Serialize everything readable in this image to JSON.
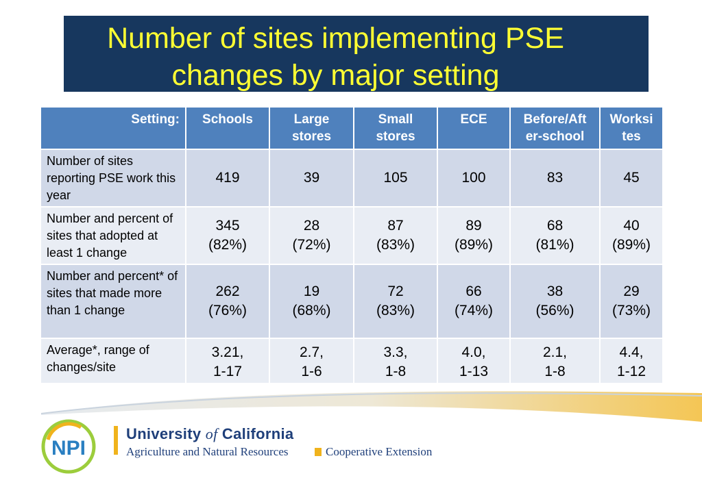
{
  "title": {
    "line1": "Number of sites implementing PSE",
    "line2": "changes by major setting"
  },
  "table": {
    "setting_label": "Setting:",
    "columns": [
      {
        "line1": "Schools",
        "line2": ""
      },
      {
        "line1": "Large",
        "line2": "stores"
      },
      {
        "line1": "Small",
        "line2": "stores"
      },
      {
        "line1": "ECE",
        "line2": ""
      },
      {
        "line1": "Before/Aft",
        "line2": "er-school"
      },
      {
        "line1": "Worksi",
        "line2": "tes"
      }
    ],
    "rows": [
      {
        "label": "Number of sites reporting PSE work this year",
        "cells": [
          {
            "a": "419",
            "b": ""
          },
          {
            "a": "39",
            "b": ""
          },
          {
            "a": "105",
            "b": ""
          },
          {
            "a": "100",
            "b": ""
          },
          {
            "a": "83",
            "b": ""
          },
          {
            "a": "45",
            "b": ""
          }
        ]
      },
      {
        "label": "Number and percent of sites that adopted at least 1 change",
        "cells": [
          {
            "a": "345",
            "b": "(82%)"
          },
          {
            "a": "28",
            "b": "(72%)"
          },
          {
            "a": "87",
            "b": "(83%)"
          },
          {
            "a": "89",
            "b": "(89%)"
          },
          {
            "a": "68",
            "b": "(81%)"
          },
          {
            "a": "40",
            "b": "(89%)"
          }
        ]
      },
      {
        "label": "Number and percent* of sites that made more than 1 change",
        "cells": [
          {
            "a": "262",
            "b": "(76%)"
          },
          {
            "a": "19",
            "b": "(68%)"
          },
          {
            "a": "72",
            "b": "(83%)"
          },
          {
            "a": "66",
            "b": "(74%)"
          },
          {
            "a": "38",
            "b": "(56%)"
          },
          {
            "a": "29",
            "b": "(73%)"
          }
        ]
      },
      {
        "label": "Average*, range of changes/site",
        "cells": [
          {
            "a": "3.21,",
            "b": "1-17"
          },
          {
            "a": "2.7,",
            "b": "1-6"
          },
          {
            "a": "3.3,",
            "b": "1-8"
          },
          {
            "a": "4.0,",
            "b": "1-13"
          },
          {
            "a": "2.1,",
            "b": "1-8"
          },
          {
            "a": "4.4,",
            "b": "1-12"
          }
        ]
      }
    ]
  },
  "footer": {
    "logo_text": "NPI",
    "university_pre": "University ",
    "university_of": "of",
    "university_post": " California",
    "division": "Agriculture and Natural Resources",
    "extension": "Cooperative Extension"
  },
  "colors": {
    "title_bg": "#17375e",
    "title_text": "#ffff33",
    "header_bg": "#4f81bd",
    "row_dark": "#d0d8e8",
    "row_light": "#e9edf4",
    "uc_blue": "#1f3f7a",
    "uc_gold": "#f0b31c"
  }
}
